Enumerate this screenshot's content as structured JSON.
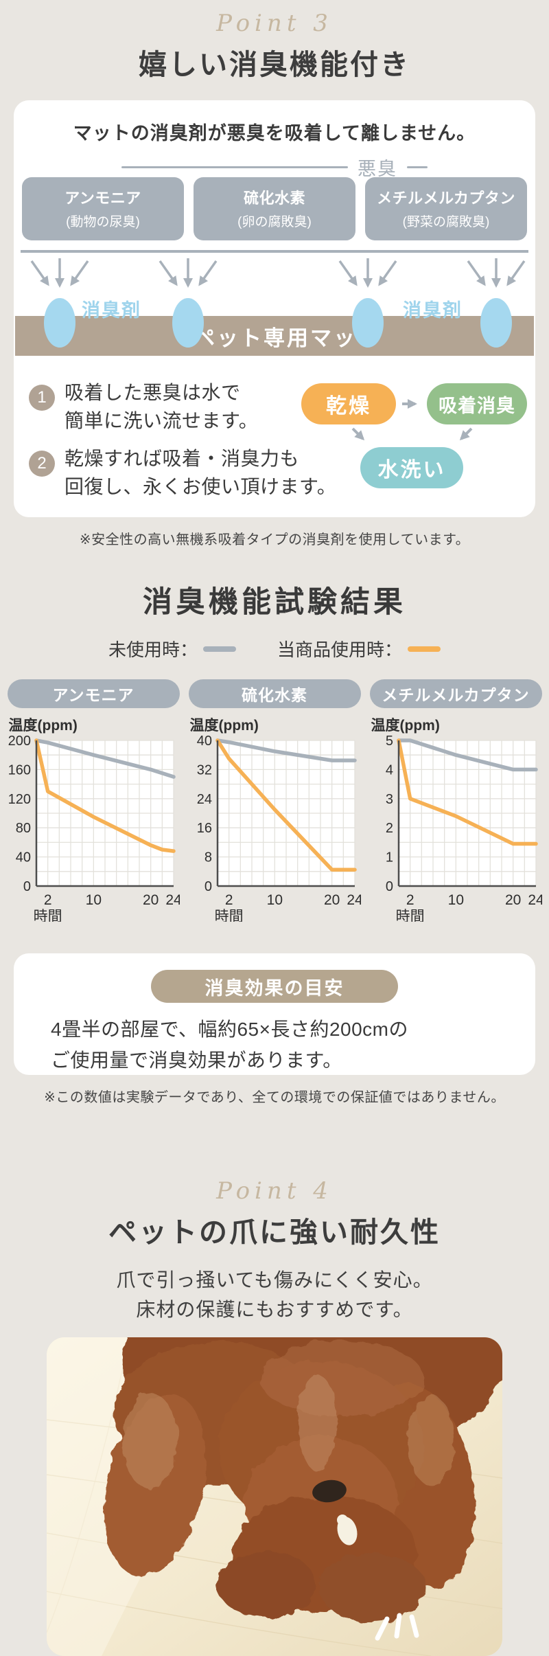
{
  "page_bg": "#e9e6e1",
  "point3": {
    "eyebrow": "Point 3",
    "title": "嬉しい消臭機能付き"
  },
  "absorb_card": {
    "lead": "マットの消臭剤が悪臭を吸着して離しません。",
    "odor_label": "悪臭",
    "odor_boxes": [
      {
        "name": "アンモニア",
        "desc": "(動物の尿臭)"
      },
      {
        "name": "硫化水素",
        "desc": "(卵の腐敗臭)"
      },
      {
        "name": "メチルメルカプタン",
        "desc": "(野菜の腐敗臭)"
      }
    ],
    "deodorizer_label": "消臭剤",
    "mat_label": "ペット専用マット",
    "steps": [
      {
        "num": "1",
        "lines": [
          "吸着した悪臭は水で",
          "簡単に洗い流せます。"
        ]
      },
      {
        "num": "2",
        "lines": [
          "乾燥すれば吸着・消臭力も",
          "回復し、永くお使い頂けます。"
        ]
      }
    ],
    "cycle": {
      "dry": "乾燥",
      "absorb": "吸着消臭",
      "wash": "水洗い"
    },
    "colors": {
      "dry": "#f6b155",
      "absorb": "#94c08b",
      "wash": "#8ecdd1",
      "odor_gray": "#a8b1ba",
      "deodorizer_blue": "#a5d8ef",
      "mat_tan": "#b3a493"
    }
  },
  "note_safety": "※安全性の高い無機系吸着タイプの消臭剤を使用しています。",
  "test_section": {
    "title": "消臭機能試験結果",
    "legend": [
      {
        "label": "未使用時：",
        "color": "#a8b1ba"
      },
      {
        "label": "当商品使用時：",
        "color": "#f6b155"
      }
    ]
  },
  "chart_data": [
    {
      "type": "line",
      "title": "アンモニア",
      "unit_label": "温度(ppm)",
      "xlabel": "時間",
      "xlim": [
        0,
        24
      ],
      "ylim": [
        0,
        200
      ],
      "x_ticks": [
        2,
        10,
        20,
        24
      ],
      "y_ticks": [
        0,
        40,
        80,
        120,
        160,
        200
      ],
      "grid": {
        "x_step": 2,
        "y_step": 20
      },
      "series": [
        {
          "name": "未使用時",
          "color": "#a8b1ba",
          "points": [
            [
              0,
              200
            ],
            [
              2,
              197
            ],
            [
              10,
              180
            ],
            [
              20,
              160
            ],
            [
              24,
              150
            ]
          ]
        },
        {
          "name": "当商品使用時",
          "color": "#f6b155",
          "points": [
            [
              0,
              200
            ],
            [
              2,
              130
            ],
            [
              10,
              95
            ],
            [
              20,
              56
            ],
            [
              22,
              50
            ],
            [
              24,
              48
            ]
          ]
        }
      ]
    },
    {
      "type": "line",
      "title": "硫化水素",
      "unit_label": "温度(ppm)",
      "xlabel": "時間",
      "xlim": [
        0,
        24
      ],
      "ylim": [
        0,
        40
      ],
      "x_ticks": [
        2,
        10,
        20,
        24
      ],
      "y_ticks": [
        0,
        8,
        16,
        24,
        32,
        40
      ],
      "grid": {
        "x_step": 2,
        "y_step": 4
      },
      "series": [
        {
          "name": "未使用時",
          "color": "#a8b1ba",
          "points": [
            [
              0,
              40
            ],
            [
              2,
              39.5
            ],
            [
              10,
              37
            ],
            [
              20,
              34.5
            ],
            [
              24,
              34.5
            ]
          ]
        },
        {
          "name": "当商品使用時",
          "color": "#f6b155",
          "points": [
            [
              0,
              40
            ],
            [
              2,
              35
            ],
            [
              10,
              21
            ],
            [
              20,
              4.5
            ],
            [
              24,
              4.5
            ]
          ]
        }
      ]
    },
    {
      "type": "line",
      "title": "メチルメルカプタン",
      "unit_label": "温度(ppm)",
      "xlabel": "時間",
      "xlim": [
        0,
        24
      ],
      "ylim": [
        0,
        5
      ],
      "x_ticks": [
        2,
        10,
        20,
        24
      ],
      "y_ticks": [
        0,
        1,
        2,
        3,
        4,
        5
      ],
      "grid": {
        "x_step": 2,
        "y_step": 0.5
      },
      "series": [
        {
          "name": "未使用時",
          "color": "#a8b1ba",
          "points": [
            [
              0,
              5
            ],
            [
              2,
              5
            ],
            [
              10,
              4.5
            ],
            [
              20,
              4
            ],
            [
              24,
              4
            ]
          ]
        },
        {
          "name": "当商品使用時",
          "color": "#f6b155",
          "points": [
            [
              0,
              5
            ],
            [
              2,
              3
            ],
            [
              10,
              2.4
            ],
            [
              20,
              1.45
            ],
            [
              24,
              1.45
            ]
          ]
        }
      ]
    }
  ],
  "guide_card": {
    "pill": "消臭効果の目安",
    "lines": [
      "4畳半の部屋で、幅約65×長さ約200cmの",
      "ご使用量で消臭効果があります。"
    ]
  },
  "note_disclaimer": "※この数値は実験データであり、全ての環境での保証値ではありません。",
  "point4": {
    "eyebrow": "Point 4",
    "title": "ペットの爪に強い耐久性",
    "desc_lines": [
      "爪で引っ掻いても傷みにくく安心。",
      "床材の保護にもおすすめです。"
    ]
  },
  "photo": {
    "description": "トイプードルがペット専用マットの上でおやつを噛んでいる写真"
  }
}
